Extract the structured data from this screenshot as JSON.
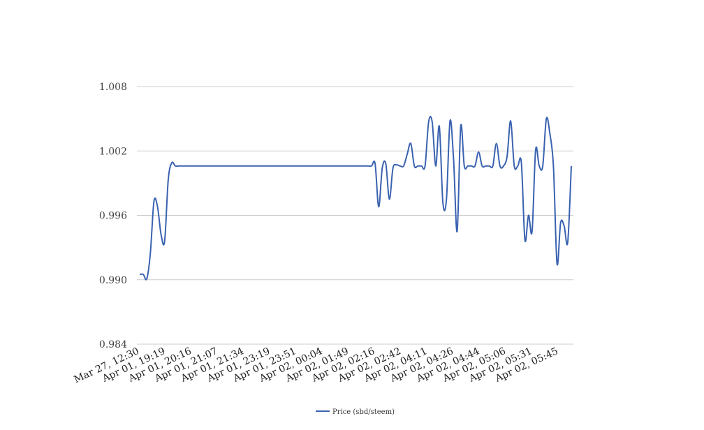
{
  "chart_data": {
    "type": "line",
    "title": "",
    "xlabel": "",
    "ylabel": "",
    "ylim": [
      0.984,
      1.008
    ],
    "yticks": [
      "0.984",
      "0.990",
      "0.996",
      "1.002",
      "1.008"
    ],
    "grid": true,
    "legend_position": "bottom-center",
    "x_tick_labels": [
      "Mar 27, 12:30",
      "Apr 01, 19:19",
      "Apr 01, 20:16",
      "Apr 01, 21:07",
      "Apr 01, 21:34",
      "Apr 01, 23:19",
      "Apr 01, 23:51",
      "Apr 02, 00:04",
      "Apr 02, 01:49",
      "Apr 02, 02:16",
      "Apr 02, 02:42",
      "Apr 02, 04:11",
      "Apr 02, 04:26",
      "Apr 02, 04:44",
      "Apr 02, 05:06",
      "Apr 02, 05:31",
      "Apr 02, 05:45"
    ],
    "series": [
      {
        "name": "Price (sbd/steem)",
        "color": "#3a62b0",
        "values": [
          0.9905,
          0.9905,
          0.9901,
          0.9925,
          0.9973,
          0.9968,
          0.9942,
          0.9936,
          0.9993,
          1.0009,
          1.0006,
          1.0006,
          1.0006,
          1.0006,
          1.0006,
          1.0006,
          1.0006,
          1.0006,
          1.0006,
          1.0006,
          1.0006,
          1.0006,
          1.0006,
          1.0006,
          1.0006,
          1.0006,
          1.0006,
          1.0006,
          1.0006,
          1.0006,
          1.0006,
          1.0006,
          1.0006,
          1.0006,
          1.0006,
          1.0006,
          1.0006,
          1.0006,
          1.0006,
          1.0006,
          1.0006,
          1.0006,
          1.0006,
          1.0006,
          1.0006,
          1.0006,
          1.0006,
          1.0006,
          1.0006,
          1.0006,
          1.0006,
          1.0006,
          1.0006,
          1.0006,
          1.0006,
          1.0006,
          1.0006,
          1.0006,
          1.0006,
          1.0006,
          1.0006,
          1.0006,
          1.0006,
          1.0006,
          1.0006,
          1.0006,
          1.0008,
          0.9968,
          1.0004,
          1.0008,
          0.9975,
          1.0004,
          1.0007,
          1.0006,
          1.0006,
          1.0017,
          1.0027,
          1.0006,
          1.0006,
          1.0006,
          1.0006,
          1.0047,
          1.0047,
          1.0006,
          1.0043,
          0.9972,
          0.9975,
          1.0048,
          1.0012,
          0.9945,
          1.0043,
          1.0006,
          1.0006,
          1.0006,
          1.0006,
          1.0019,
          1.0006,
          1.0006,
          1.0006,
          1.0006,
          1.0027,
          1.0006,
          1.0006,
          1.0015,
          1.0048,
          1.0006,
          1.0006,
          1.0009,
          0.9937,
          0.996,
          0.9945,
          1.0021,
          1.0006,
          1.0006,
          1.005,
          1.0036,
          1.0005,
          0.9915,
          0.9953,
          0.995,
          0.9935,
          1.0006
        ]
      }
    ]
  }
}
